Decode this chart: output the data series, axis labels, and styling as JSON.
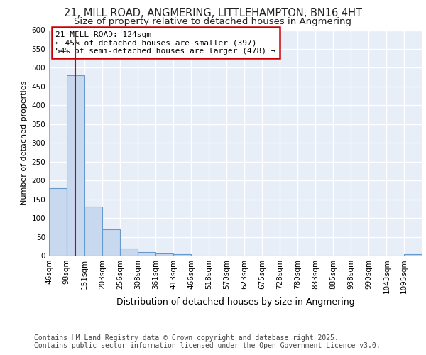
{
  "title_line1": "21, MILL ROAD, ANGMERING, LITTLEHAMPTON, BN16 4HT",
  "title_line2": "Size of property relative to detached houses in Angmering",
  "xlabel": "Distribution of detached houses by size in Angmering",
  "ylabel": "Number of detached properties",
  "bin_edges": [
    46,
    98,
    151,
    203,
    256,
    308,
    361,
    413,
    466,
    518,
    570,
    623,
    675,
    728,
    780,
    833,
    885,
    938,
    990,
    1043,
    1095,
    1147
  ],
  "bar_heights": [
    180,
    480,
    130,
    70,
    18,
    10,
    6,
    4,
    0,
    0,
    0,
    0,
    0,
    0,
    0,
    0,
    0,
    0,
    0,
    0,
    4
  ],
  "bar_color": "#c8d8ef",
  "bar_edgecolor": "#6699cc",
  "property_size": 124,
  "vline_color": "#cc0000",
  "annotation_text": "21 MILL ROAD: 124sqm\n← 45% of detached houses are smaller (397)\n54% of semi-detached houses are larger (478) →",
  "annotation_box_edgecolor": "#cc0000",
  "annotation_box_facecolor": "#ffffff",
  "ylim": [
    0,
    600
  ],
  "yticks": [
    0,
    50,
    100,
    150,
    200,
    250,
    300,
    350,
    400,
    450,
    500,
    550,
    600
  ],
  "background_color": "#e8eef8",
  "grid_color": "#ffffff",
  "footer_line1": "Contains HM Land Registry data © Crown copyright and database right 2025.",
  "footer_line2": "Contains public sector information licensed under the Open Government Licence v3.0.",
  "title_fontsize": 10.5,
  "subtitle_fontsize": 9.5,
  "tick_fontsize": 7.5,
  "xlabel_fontsize": 9,
  "ylabel_fontsize": 8,
  "annotation_fontsize": 8,
  "footer_fontsize": 7
}
